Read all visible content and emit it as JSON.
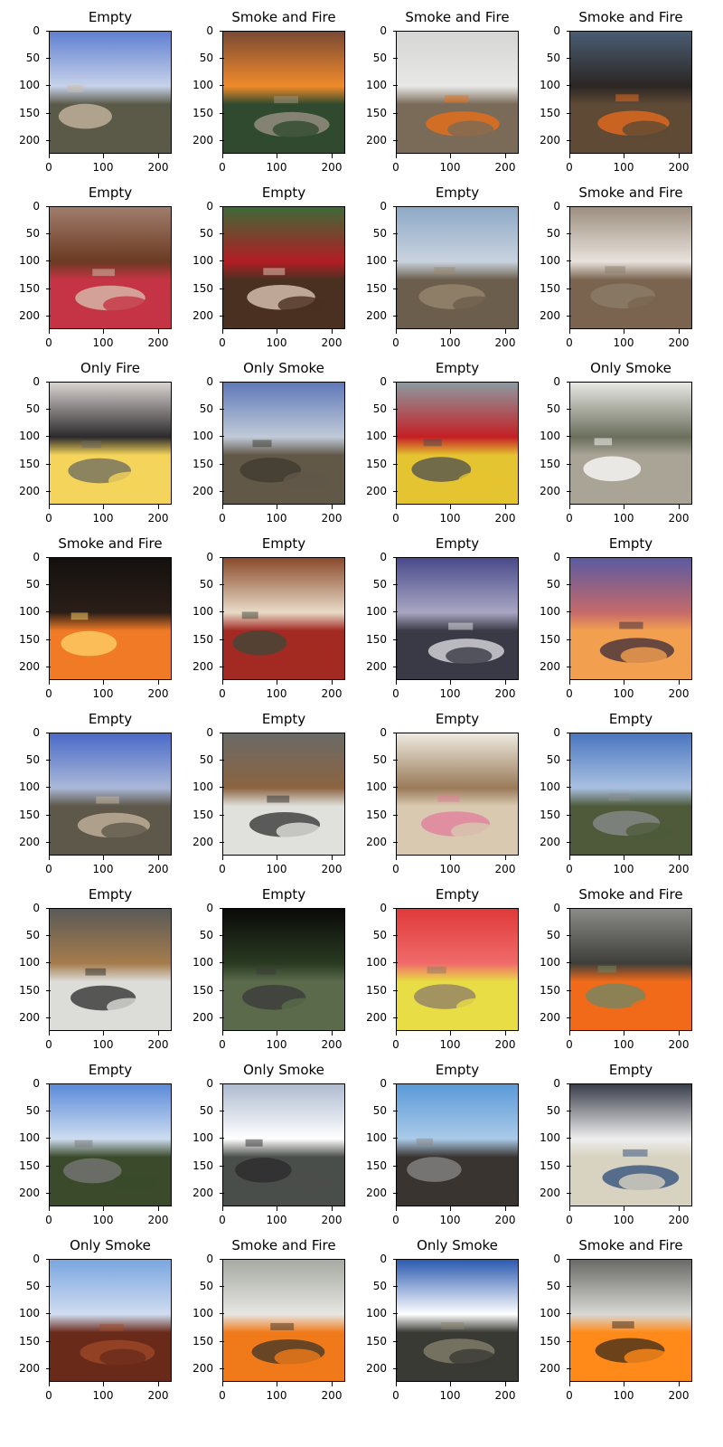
{
  "axis": {
    "yticks": [
      "0",
      "50",
      "100",
      "150",
      "200"
    ],
    "xticks": [
      "0",
      "100",
      "200"
    ]
  },
  "panels": [
    {
      "title": "Empty",
      "scene": "fisheye-sky-rocks",
      "colors": [
        "#5f7fd0",
        "#c7d2ea",
        "#5b5a48",
        "#cbbca4"
      ]
    },
    {
      "title": "Smoke and Fire",
      "scene": "forest-fire",
      "colors": [
        "#7a4a34",
        "#f08a2a",
        "#2f4a2e",
        "#a2958a"
      ]
    },
    {
      "title": "Smoke and Fire",
      "scene": "grass-fire-smoke",
      "colors": [
        "#d5d6d4",
        "#e8e8e6",
        "#7a6a58",
        "#f06f14"
      ]
    },
    {
      "title": "Smoke and Fire",
      "scene": "black-smoke-hill",
      "colors": [
        "#4a5d72",
        "#2b2624",
        "#5e4a35",
        "#ee6c1c"
      ]
    },
    {
      "title": "Empty",
      "scene": "woman-doorway",
      "colors": [
        "#a07d6c",
        "#6b3a22",
        "#c53444",
        "#d7c5b4"
      ]
    },
    {
      "title": "Empty",
      "scene": "person-red-jacket",
      "colors": [
        "#3f6a38",
        "#b21d24",
        "#4a3020",
        "#e7cfc0"
      ]
    },
    {
      "title": "Empty",
      "scene": "desert-mountains",
      "colors": [
        "#8ea9c6",
        "#c9d3de",
        "#6b5e4c",
        "#9b8a70"
      ]
    },
    {
      "title": "Smoke and Fire",
      "scene": "prairie-smoke",
      "colors": [
        "#9d8f80",
        "#e8e2dc",
        "#7a6450",
        "#8c7e6a"
      ]
    },
    {
      "title": "Only Fire",
      "scene": "lighter-flame",
      "colors": [
        "#d9d3d0",
        "#2c2a2c",
        "#f4d45a",
        "#6a6a62"
      ]
    },
    {
      "title": "Only Smoke",
      "scene": "tower-valley",
      "colors": [
        "#5f79b8",
        "#c0cad8",
        "#625848",
        "#3e3a2e"
      ]
    },
    {
      "title": "Empty",
      "scene": "car-garage",
      "colors": [
        "#8c9aa2",
        "#c41f24",
        "#e5c431",
        "#4a4e52"
      ]
    },
    {
      "title": "Only Smoke",
      "scene": "snowy-ridge",
      "colors": [
        "#e7e7e4",
        "#6a6f5c",
        "#a9a496",
        "#ffffff"
      ]
    },
    {
      "title": "Smoke and Fire",
      "scene": "night-fire-line",
      "colors": [
        "#14100e",
        "#2a1e18",
        "#f07a26",
        "#ffd46a"
      ]
    },
    {
      "title": "Empty",
      "scene": "bedroom",
      "colors": [
        "#8a4a2a",
        "#e8dbc8",
        "#a22a22",
        "#3a4a3a"
      ]
    },
    {
      "title": "Empty",
      "scene": "dusk-valley",
      "colors": [
        "#4a4a8c",
        "#a8a6c2",
        "#3a3a46",
        "#e4e4e8"
      ]
    },
    {
      "title": "Empty",
      "scene": "sunset-clouds",
      "colors": [
        "#5a5aa0",
        "#c56a6a",
        "#f2a050",
        "#3a2a3a"
      ]
    },
    {
      "title": "Empty",
      "scene": "fisheye-sky-rocks-2",
      "colors": [
        "#4a6ac8",
        "#aab8d8",
        "#5e584a",
        "#cab8a0"
      ]
    },
    {
      "title": "Empty",
      "scene": "classroom-cctv",
      "colors": [
        "#6a6a66",
        "#8c6440",
        "#e0e0dc",
        "#2e2e2c"
      ]
    },
    {
      "title": "Empty",
      "scene": "lamp-rabbit",
      "colors": [
        "#eeeae0",
        "#9a7a58",
        "#d8c9b0",
        "#e27b9a"
      ]
    },
    {
      "title": "Empty",
      "scene": "road-hill",
      "colors": [
        "#4a76c0",
        "#a8c0e0",
        "#4e5a3a",
        "#8c8e90"
      ]
    },
    {
      "title": "Empty",
      "scene": "classroom-cctv-2",
      "colors": [
        "#5a5a58",
        "#a57c4c",
        "#dcdcd8",
        "#2a2a28"
      ]
    },
    {
      "title": "Empty",
      "scene": "dark-forest-road",
      "colors": [
        "#0a0a08",
        "#2a3a22",
        "#5a6a4a",
        "#3a3a3a"
      ]
    },
    {
      "title": "Empty",
      "scene": "red-bucket",
      "colors": [
        "#e03a3a",
        "#f06a6a",
        "#e9dd45",
        "#8a7a6a"
      ]
    },
    {
      "title": "Smoke and Fire",
      "scene": "workers-fire",
      "colors": [
        "#8a8a86",
        "#3e3e3a",
        "#f06a1a",
        "#6a8a6a"
      ]
    },
    {
      "title": "Empty",
      "scene": "sunny-trees",
      "colors": [
        "#5a8ad8",
        "#cddcf0",
        "#3a4a2a",
        "#7a7a7a"
      ]
    },
    {
      "title": "Only Smoke",
      "scene": "hazy-sun",
      "colors": [
        "#aebbd0",
        "#ffffff",
        "#4a4e4a",
        "#2a2a2a"
      ]
    },
    {
      "title": "Empty",
      "scene": "cliff-patches",
      "colors": [
        "#5a9ad8",
        "#aacae8",
        "#3a3430",
        "#8a8a8a"
      ]
    },
    {
      "title": "Empty",
      "scene": "plastic-bag",
      "colors": [
        "#3a3e4a",
        "#eeeeee",
        "#d8d2c0",
        "#2a4a7a"
      ]
    },
    {
      "title": "Only Smoke",
      "scene": "red-field",
      "colors": [
        "#7aa6e0",
        "#d0dcf0",
        "#6a2a1a",
        "#a04a2a"
      ]
    },
    {
      "title": "Smoke and Fire",
      "scene": "grass-fire-2",
      "colors": [
        "#a6aaa2",
        "#e6e6e2",
        "#f07a1a",
        "#3a342a"
      ]
    },
    {
      "title": "Only Smoke",
      "scene": "fisheye-clouds",
      "colors": [
        "#2a5ab0",
        "#ffffff",
        "#3a3a34",
        "#8a8470"
      ]
    },
    {
      "title": "Smoke and Fire",
      "scene": "fire-closeup",
      "colors": [
        "#6a6a66",
        "#d8d8d4",
        "#ff8a1a",
        "#3a2a1a"
      ]
    }
  ]
}
